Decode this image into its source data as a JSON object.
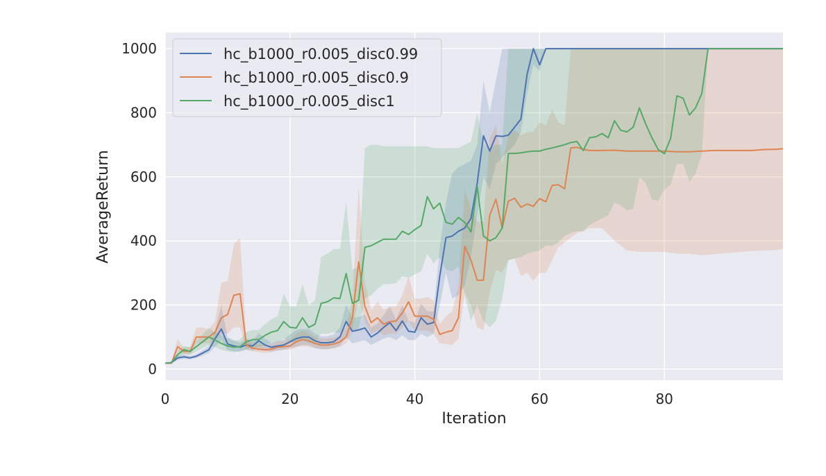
{
  "chart_data": {
    "type": "line",
    "title": "",
    "xlabel": "Iteration",
    "ylabel": "AverageReturn",
    "xlim": [
      0,
      99
    ],
    "ylim": [
      -35,
      1050
    ],
    "xticks": [
      0,
      20,
      40,
      60,
      80
    ],
    "yticks": [
      0,
      200,
      400,
      600,
      800,
      1000
    ],
    "grid": true,
    "legend_position": "top-left",
    "background_color": "#eaeaf2",
    "series": [
      {
        "name": "hc_b1000_r0.005_disc0.99",
        "color": "#4c72b0",
        "x": [
          0,
          1,
          2,
          3,
          4,
          5,
          6,
          7,
          8,
          9,
          10,
          11,
          12,
          13,
          14,
          15,
          16,
          17,
          18,
          19,
          20,
          21,
          22,
          23,
          24,
          25,
          26,
          27,
          28,
          29,
          30,
          31,
          32,
          33,
          34,
          35,
          36,
          37,
          38,
          39,
          40,
          41,
          42,
          43,
          44,
          45,
          46,
          47,
          48,
          49,
          50,
          51,
          52,
          53,
          54,
          55,
          56,
          57,
          58,
          59,
          60,
          61,
          62,
          65,
          70,
          75,
          80,
          85,
          90,
          95,
          99
        ],
        "y": [
          18,
          20,
          35,
          38,
          35,
          40,
          50,
          60,
          95,
          125,
          78,
          72,
          68,
          75,
          72,
          88,
          75,
          68,
          72,
          75,
          85,
          95,
          100,
          100,
          88,
          82,
          82,
          85,
          100,
          148,
          118,
          122,
          128,
          100,
          112,
          130,
          145,
          120,
          150,
          118,
          115,
          160,
          140,
          145,
          290,
          410,
          415,
          430,
          440,
          470,
          580,
          728,
          680,
          728,
          726,
          730,
          755,
          780,
          920,
          1000,
          950,
          1000,
          1000,
          1000,
          1000,
          1000,
          1000,
          1000,
          1000,
          1000,
          1000
        ],
        "lower": [
          18,
          18,
          28,
          32,
          30,
          34,
          42,
          50,
          70,
          90,
          60,
          55,
          55,
          60,
          58,
          65,
          58,
          55,
          58,
          60,
          65,
          70,
          75,
          75,
          65,
          62,
          62,
          65,
          72,
          100,
          80,
          85,
          90,
          75,
          85,
          95,
          100,
          90,
          105,
          90,
          90,
          110,
          100,
          110,
          200,
          300,
          220,
          230,
          260,
          350,
          480,
          600,
          560,
          640,
          660,
          680,
          700,
          740,
          860,
          950,
          930,
          1000,
          1000,
          1000,
          1000,
          1000,
          1000,
          1000,
          1000,
          1000,
          1000
        ],
        "upper": [
          18,
          22,
          42,
          45,
          40,
          46,
          58,
          72,
          120,
          200,
          100,
          90,
          82,
          95,
          88,
          112,
          95,
          82,
          88,
          92,
          108,
          122,
          125,
          125,
          110,
          102,
          102,
          108,
          130,
          200,
          160,
          162,
          170,
          130,
          142,
          168,
          195,
          155,
          200,
          150,
          145,
          205,
          180,
          180,
          380,
          520,
          610,
          630,
          640,
          650,
          700,
          900,
          800,
          900,
          1000,
          1000,
          1000,
          1000,
          1000,
          1000,
          1000,
          1000,
          1000,
          1000,
          1000,
          1000,
          1000,
          1000,
          1000,
          1000,
          1000
        ]
      },
      {
        "name": "hc_b1000_r0.005_disc0.9",
        "color": "#dd8452",
        "x": [
          0,
          1,
          2,
          3,
          4,
          5,
          6,
          7,
          8,
          9,
          10,
          11,
          12,
          13,
          14,
          15,
          16,
          17,
          18,
          19,
          20,
          21,
          22,
          23,
          24,
          25,
          26,
          27,
          28,
          29,
          30,
          31,
          32,
          33,
          34,
          35,
          36,
          37,
          38,
          39,
          40,
          41,
          42,
          43,
          44,
          45,
          46,
          47,
          48,
          49,
          50,
          51,
          52,
          53,
          54,
          55,
          56,
          57,
          58,
          59,
          60,
          61,
          62,
          63,
          64,
          65,
          66,
          67,
          68,
          70,
          72,
          74,
          76,
          78,
          80,
          82,
          84,
          86,
          88,
          90,
          92,
          94,
          96,
          98,
          99
        ],
        "y": [
          18,
          18,
          70,
          55,
          55,
          100,
          100,
          100,
          115,
          160,
          170,
          230,
          235,
          75,
          65,
          62,
          60,
          62,
          68,
          70,
          72,
          85,
          92,
          88,
          80,
          75,
          75,
          78,
          85,
          100,
          160,
          335,
          195,
          145,
          160,
          140,
          148,
          150,
          175,
          210,
          165,
          165,
          165,
          155,
          108,
          115,
          120,
          160,
          383,
          340,
          277,
          277,
          480,
          530,
          440,
          524,
          533,
          505,
          515,
          508,
          532,
          522,
          573,
          575,
          563,
          690,
          692,
          685,
          682,
          682,
          683,
          680,
          680,
          680,
          680,
          678,
          678,
          680,
          682,
          682,
          682,
          682,
          685,
          686,
          688
        ],
        "lower": [
          16,
          16,
          55,
          45,
          45,
          80,
          80,
          80,
          90,
          110,
          110,
          130,
          130,
          60,
          55,
          52,
          50,
          52,
          58,
          60,
          60,
          68,
          72,
          70,
          65,
          62,
          62,
          64,
          70,
          80,
          120,
          220,
          145,
          110,
          120,
          105,
          110,
          110,
          130,
          150,
          120,
          120,
          120,
          110,
          80,
          78,
          75,
          95,
          240,
          200,
          130,
          120,
          240,
          310,
          300,
          340,
          345,
          290,
          300,
          275,
          300,
          300,
          340,
          380,
          395,
          410,
          425,
          430,
          440,
          440,
          400,
          370,
          365,
          365,
          365,
          360,
          360,
          355,
          358,
          362,
          365,
          368,
          370,
          372,
          375
        ],
        "upper": [
          20,
          20,
          95,
          65,
          70,
          130,
          130,
          125,
          150,
          270,
          275,
          390,
          410,
          95,
          80,
          78,
          75,
          78,
          85,
          88,
          92,
          110,
          120,
          112,
          100,
          95,
          95,
          98,
          105,
          130,
          220,
          570,
          270,
          185,
          210,
          185,
          195,
          195,
          230,
          290,
          220,
          220,
          225,
          215,
          140,
          165,
          180,
          260,
          560,
          500,
          460,
          460,
          720,
          760,
          640,
          730,
          745,
          730,
          740,
          740,
          770,
          760,
          810,
          770,
          760,
          1000,
          1000,
          1000,
          1000,
          1000,
          1000,
          1000,
          1000,
          1000,
          1000,
          1000,
          1000,
          1000,
          1000,
          1000,
          1000,
          1000,
          1000,
          1000,
          1000
        ]
      },
      {
        "name": "hc_b1000_r0.005_disc1",
        "color": "#55a868",
        "x": [
          0,
          1,
          2,
          3,
          4,
          5,
          6,
          7,
          8,
          9,
          10,
          11,
          12,
          13,
          14,
          15,
          16,
          17,
          18,
          19,
          20,
          21,
          22,
          23,
          24,
          25,
          26,
          27,
          28,
          29,
          30,
          31,
          32,
          33,
          34,
          35,
          36,
          37,
          38,
          39,
          40,
          41,
          42,
          43,
          44,
          45,
          46,
          47,
          48,
          49,
          50,
          51,
          52,
          53,
          54,
          55,
          56,
          57,
          58,
          59,
          60,
          61,
          62,
          63,
          64,
          65,
          66,
          67,
          68,
          69,
          70,
          71,
          72,
          73,
          74,
          75,
          76,
          77,
          78,
          79,
          80,
          81,
          82,
          83,
          84,
          85,
          86,
          87,
          88,
          90,
          95,
          99
        ],
        "y": [
          18,
          20,
          45,
          60,
          55,
          70,
          85,
          100,
          90,
          80,
          72,
          68,
          70,
          85,
          92,
          92,
          105,
          115,
          120,
          148,
          130,
          128,
          160,
          130,
          140,
          205,
          210,
          222,
          220,
          298,
          205,
          215,
          380,
          385,
          395,
          405,
          405,
          405,
          430,
          420,
          435,
          448,
          538,
          500,
          518,
          458,
          452,
          473,
          458,
          428,
          570,
          415,
          400,
          410,
          440,
          673,
          673,
          675,
          678,
          680,
          680,
          686,
          690,
          695,
          700,
          707,
          710,
          682,
          722,
          725,
          735,
          722,
          775,
          745,
          740,
          755,
          815,
          765,
          722,
          685,
          672,
          720,
          853,
          845,
          793,
          815,
          860,
          1000,
          1000,
          1000,
          1000,
          1000
        ],
        "lower": [
          16,
          16,
          35,
          48,
          45,
          55,
          65,
          75,
          68,
          60,
          55,
          52,
          55,
          62,
          68,
          68,
          75,
          82,
          85,
          95,
          85,
          82,
          95,
          80,
          85,
          110,
          110,
          115,
          112,
          140,
          120,
          125,
          220,
          230,
          250,
          265,
          265,
          268,
          290,
          285,
          295,
          305,
          360,
          330,
          350,
          310,
          305,
          320,
          230,
          150,
          200,
          150,
          130,
          150,
          220,
          340,
          345,
          350,
          360,
          365,
          370,
          385,
          385,
          395,
          415,
          425,
          430,
          430,
          450,
          460,
          470,
          480,
          520,
          510,
          495,
          500,
          600,
          580,
          530,
          525,
          560,
          575,
          640,
          640,
          585,
          610,
          670,
          1000,
          1000,
          1000,
          1000,
          1000
        ],
        "upper": [
          20,
          24,
          55,
          72,
          68,
          88,
          108,
          128,
          115,
          105,
          95,
          88,
          92,
          115,
          122,
          122,
          140,
          155,
          165,
          235,
          195,
          195,
          265,
          200,
          215,
          350,
          360,
          375,
          375,
          520,
          310,
          320,
          690,
          700,
          700,
          695,
          695,
          695,
          695,
          695,
          695,
          695,
          695,
          690,
          690,
          690,
          690,
          690,
          700,
          710,
          800,
          700,
          690,
          700,
          700,
          1000,
          1000,
          1000,
          1000,
          1000,
          1000,
          1000,
          1000,
          1000,
          1000,
          1000,
          1000,
          1000,
          1000,
          1000,
          1000,
          1000,
          1000,
          1000,
          1000,
          1000,
          1000,
          1000,
          1000,
          1000,
          1000,
          1000,
          1000,
          1000,
          1000,
          1000,
          1000,
          1000,
          1000,
          1000,
          1000,
          1000
        ]
      }
    ]
  }
}
